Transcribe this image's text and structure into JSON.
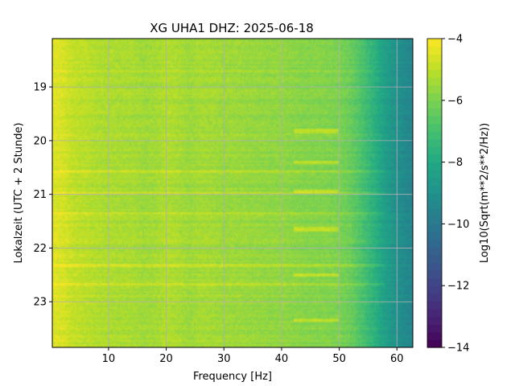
{
  "chart_data": {
    "type": "heatmap",
    "title": "XG UHA1  DHZ: 2025-06-18",
    "xlabel": "Frequency [Hz]",
    "ylabel": "Lokalzeit (UTC + 2 Stunde)",
    "xlim": [
      0.25,
      62.75
    ],
    "ylim": [
      18.1,
      23.85
    ],
    "y_inverted": true,
    "x_ticks": [
      10,
      20,
      30,
      40,
      50,
      60
    ],
    "y_ticks": [
      19,
      20,
      21,
      22,
      23
    ],
    "grid": true,
    "colormap": "viridis",
    "colorbar": {
      "label": "Log10(Sqrt(m**2/s**2/Hz))",
      "min": -14,
      "max": -4,
      "ticks": [
        -14,
        -12,
        -10,
        -8,
        -6,
        -4
      ],
      "levels": 40
    },
    "spectrum_profile": {
      "frequency_hz": [
        0.5,
        2,
        4,
        6,
        8,
        10,
        12,
        14,
        16,
        18,
        20,
        22,
        24,
        26,
        28,
        30,
        32,
        34,
        36,
        38,
        40,
        42,
        44,
        46,
        48,
        50,
        52,
        54,
        56,
        58,
        60,
        62
      ],
      "log10_amplitude": [
        -4.5,
        -4.6,
        -4.95,
        -5.05,
        -5.2,
        -5.25,
        -5.3,
        -5.3,
        -5.45,
        -5.4,
        -5.2,
        -5.3,
        -5.5,
        -5.35,
        -5.4,
        -5.5,
        -5.5,
        -5.55,
        -5.6,
        -5.65,
        -5.65,
        -5.75,
        -5.85,
        -5.85,
        -5.9,
        -6.0,
        -6.3,
        -6.9,
        -7.6,
        -8.4,
        -9.0,
        -9.4
      ]
    },
    "line_features": [
      {
        "frequency_range_hz": [
          42,
          50
        ],
        "times": [
          19.82,
          20.4,
          20.95,
          21.65,
          22.5,
          23.35
        ]
      }
    ],
    "broadband_bands": {
      "times": [
        18.72,
        20.58,
        20.97,
        21.35,
        22.32,
        22.68
      ]
    }
  }
}
